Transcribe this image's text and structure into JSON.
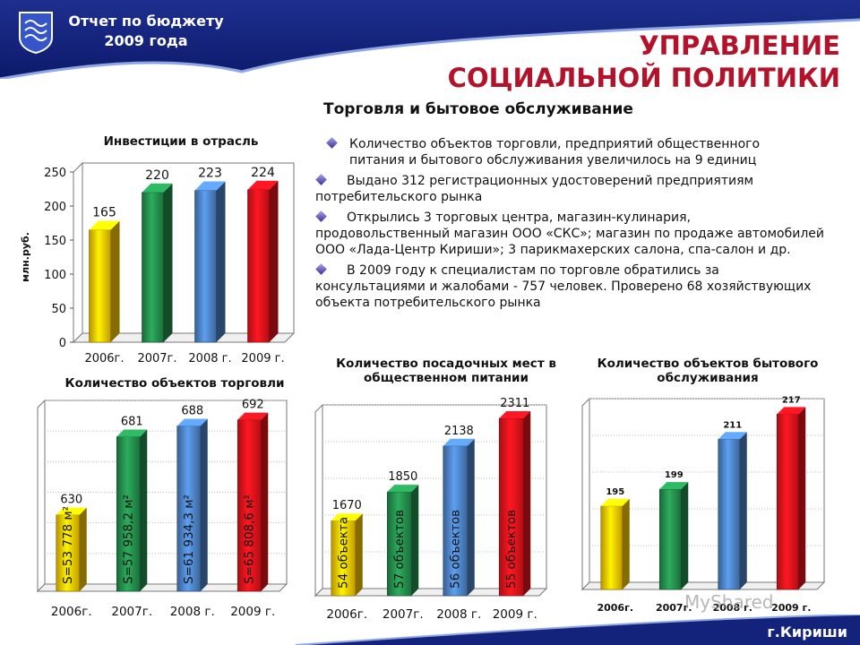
{
  "header": {
    "line1": "Отчет по бюджету",
    "line2": "2009 года",
    "main_title_line1": "УПРАВЛЕНИЕ",
    "main_title_line2": "СОЦИАЛЬНОЙ ПОЛИТИКИ",
    "emblem_icon": "city-emblem-icon"
  },
  "section_title": "Торговля и бытовое обслуживание",
  "bullets": [
    {
      "line1": "Количество объектов торговли, предприятий общественного",
      "rest": "питания и бытового обслуживания увеличилось на 9 единиц"
    },
    {
      "line1": "Выдано 312 регистрационных удостоверений предприятиям",
      "rest": "потребительского рынка"
    },
    {
      "line1": "Открылись 3 торговых центра, магазин-кулинария,",
      "rest": "продовольственный магазин ООО «СКС»; магазин по продаже автомобилей ООО «Лада-Центр Кириши»; 3 парикмахерских салона, спа-салон и др."
    },
    {
      "line1": "В 2009 году к специалистам по торговле обратились за",
      "rest": "консультациями и жалобами - 757 человек. Проверено 68 хозяйствующих объекта потребительского рынка"
    }
  ],
  "footer": {
    "city": "г.Кириши",
    "watermark": "MyShared"
  },
  "chart_data": [
    {
      "type": "bar",
      "title": "Инвестиции в отрасль",
      "ylabel": "млн.руб.",
      "categories": [
        "2006г.",
        "2007г.",
        "2008 г.",
        "2009 г."
      ],
      "values": [
        165,
        220,
        223,
        224
      ],
      "colors": [
        "#f2c200",
        "#238a4a",
        "#4a7fc1",
        "#e0121a"
      ],
      "ylim": [
        0,
        250
      ],
      "yticks": [
        "0",
        "50",
        "100",
        "150",
        "200",
        "250"
      ],
      "grid": false
    },
    {
      "type": "bar",
      "title": "Количество объектов торговли",
      "categories": [
        "2006г.",
        "2007г.",
        "2008 г.",
        "2009 г."
      ],
      "values": [
        630,
        681,
        688,
        692
      ],
      "bar_labels": [
        "S=53 778 м²",
        "S=57 958,2 м²",
        "S=61 934,3 м²",
        "S=65 808,6 м²"
      ],
      "colors": [
        "#f2c200",
        "#238a4a",
        "#4a7fc1",
        "#e0121a"
      ],
      "grid": true
    },
    {
      "type": "bar",
      "title": "Количество посадочных мест в общественном питании",
      "categories": [
        "2006г.",
        "2007г.",
        "2008 г.",
        "2009 г."
      ],
      "values": [
        1670,
        1850,
        2138,
        2311
      ],
      "bar_labels": [
        "54 объекта",
        "57 объектов",
        "56 объектов",
        "55 объектов"
      ],
      "colors": [
        "#f2c200",
        "#238a4a",
        "#4a7fc1",
        "#e0121a"
      ],
      "grid": true
    },
    {
      "type": "bar",
      "title": "Количество объектов бытового обслуживания",
      "categories": [
        "2006г.",
        "2007г.",
        "2008 г.",
        "2009 г."
      ],
      "values": [
        195,
        199,
        211,
        217
      ],
      "colors": [
        "#f2c200",
        "#238a4a",
        "#4a7fc1",
        "#e0121a"
      ],
      "grid": true
    }
  ]
}
